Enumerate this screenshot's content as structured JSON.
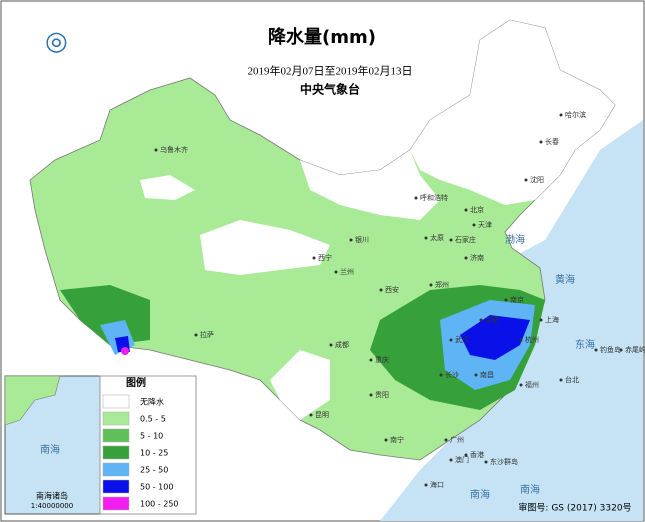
{
  "header": {
    "title": "降水量(mm)",
    "date_range": "2019年02月07日至2019年02月13日",
    "agency": "中央气象台"
  },
  "legend": {
    "title": "图例",
    "items": [
      {
        "label": "无降水",
        "color": "#ffffff"
      },
      {
        "label": "0.5 - 5",
        "color": "#a8ea96"
      },
      {
        "label": "5 - 10",
        "color": "#5fc05a"
      },
      {
        "label": "10 - 25",
        "color": "#36a03a"
      },
      {
        "label": "25 - 50",
        "color": "#5fb4f5"
      },
      {
        "label": "50 - 100",
        "color": "#0a10e8"
      },
      {
        "label": "100 - 250",
        "color": "#f21ef0"
      }
    ]
  },
  "places": [
    "乌鲁木齐",
    "哈尔滨",
    "长春",
    "沈阳",
    "呼和浩特",
    "北京",
    "天津",
    "石家庄",
    "太原",
    "济南",
    "银川",
    "西宁",
    "兰州",
    "郑州",
    "西安",
    "拉萨",
    "成都",
    "重庆",
    "武汉",
    "合肥",
    "南京",
    "上海",
    "杭州",
    "长沙",
    "南昌",
    "福州",
    "贵阳",
    "昆明",
    "南宁",
    "广州",
    "香港",
    "澳门",
    "海口",
    "台北",
    "钓鱼岛",
    "赤尾屿",
    "东沙群岛"
  ],
  "seas": [
    "渤海",
    "黄海",
    "东海",
    "南海",
    "南海"
  ],
  "inset": {
    "sea": "南海",
    "title": "南海诸岛",
    "scale": "1:40000000"
  },
  "footer": "审图号: GS (2017) 3320号"
}
